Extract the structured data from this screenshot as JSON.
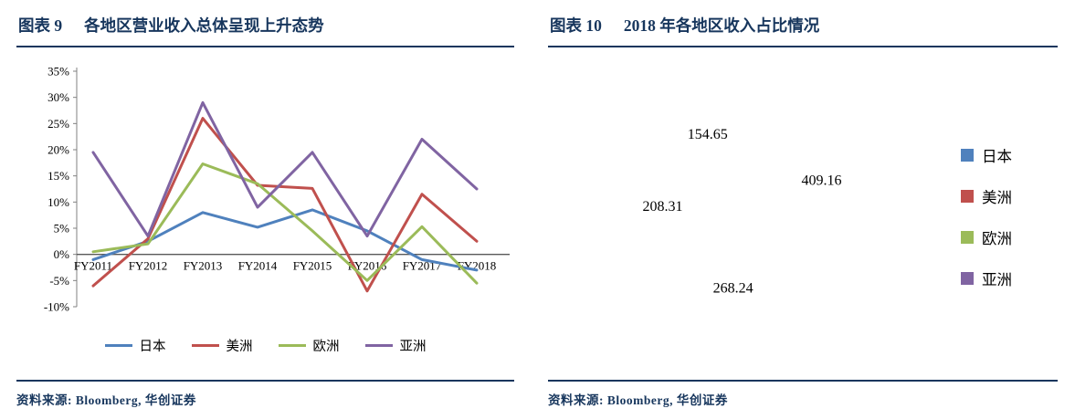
{
  "colors": {
    "navy": "#17365D",
    "japan_blue": "#4F81BD",
    "americas_red": "#C0504D",
    "europe_green": "#9BBB59",
    "asia_purple": "#8064A2"
  },
  "left_panel": {
    "label": "图表 9",
    "title": "各地区营业收入总体呈现上升态势",
    "source": "资料来源: Bloomberg, 华创证券"
  },
  "right_panel": {
    "label": "图表 10",
    "title": "2018 年各地区收入占比情况",
    "source": "资料来源: Bloomberg, 华创证券"
  },
  "chart_data": [
    {
      "type": "line",
      "title": "各地区营业收入总体呈现上升态势",
      "x": [
        "FY2011",
        "FY2012",
        "FY2013",
        "FY2014",
        "FY2015",
        "FY2016",
        "FY2017",
        "FY2018"
      ],
      "ylim": [
        -10,
        35
      ],
      "ytick_step": 5,
      "ytick_suffix": "%",
      "grid": false,
      "legend_position": "bottom",
      "series": [
        {
          "id": "japan",
          "name": "日本",
          "color": "#4F81BD",
          "values": [
            -1,
            2.5,
            8,
            5.2,
            8.5,
            4.5,
            -1,
            -3
          ]
        },
        {
          "id": "americas",
          "name": "美洲",
          "color": "#C0504D",
          "values": [
            -6,
            3,
            26,
            13.2,
            12.6,
            -7,
            11.5,
            2.5
          ]
        },
        {
          "id": "europe",
          "name": "欧洲",
          "color": "#9BBB59",
          "values": [
            0.5,
            2,
            17.3,
            13.5,
            4.5,
            -5,
            5.3,
            -5.5
          ]
        },
        {
          "id": "asia",
          "name": "亚洲",
          "color": "#8064A2",
          "values": [
            19.5,
            3.5,
            29,
            9,
            19.5,
            3.5,
            22,
            12.5
          ]
        }
      ]
    },
    {
      "type": "pie",
      "subtype": "donut",
      "title": "2018 年各地区收入占比情况",
      "legend_position": "right",
      "slices": [
        {
          "id": "japan",
          "name": "日本",
          "color": "#4F81BD",
          "value": 409.16
        },
        {
          "id": "americas",
          "name": "美洲",
          "color": "#C0504D",
          "value": 268.24
        },
        {
          "id": "europe",
          "name": "欧洲",
          "color": "#9BBB59",
          "value": 208.31
        },
        {
          "id": "asia",
          "name": "亚洲",
          "color": "#8064A2",
          "value": 154.65
        }
      ]
    }
  ]
}
